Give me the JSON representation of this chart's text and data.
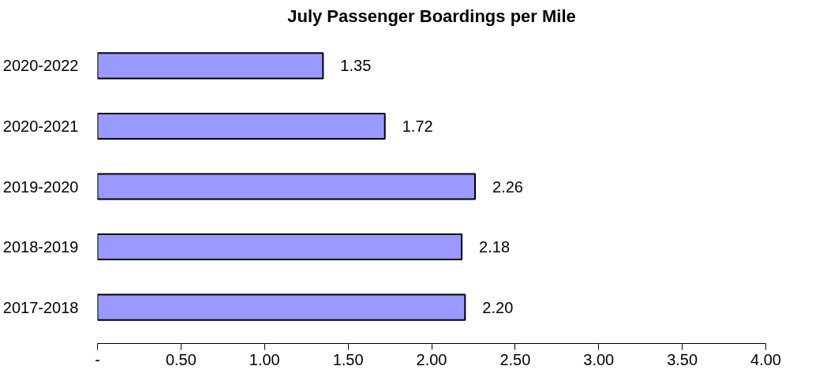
{
  "chart_data": {
    "type": "bar",
    "orientation": "horizontal",
    "title": "July Passenger Boardings per Mile",
    "categories": [
      "2020-2022",
      "2020-2021",
      "2019-2020",
      "2018-2019",
      "2017-2018"
    ],
    "values": [
      1.35,
      1.72,
      2.26,
      2.18,
      2.2
    ],
    "value_labels": [
      "1.35",
      "1.72",
      "2.26",
      "2.18",
      "2.20"
    ],
    "color": "#9999ff",
    "xlim": [
      0,
      4
    ],
    "xticks": [
      {
        "value": 0,
        "label": "-"
      },
      {
        "value": 0.5,
        "label": "0.50"
      },
      {
        "value": 1,
        "label": "1.00"
      },
      {
        "value": 1.5,
        "label": "1.50"
      },
      {
        "value": 2,
        "label": "2.00"
      },
      {
        "value": 2.5,
        "label": "2.50"
      },
      {
        "value": 3,
        "label": "3.00"
      },
      {
        "value": 3.5,
        "label": "3.50"
      },
      {
        "value": 4,
        "label": "4.00"
      }
    ],
    "grid": false
  }
}
